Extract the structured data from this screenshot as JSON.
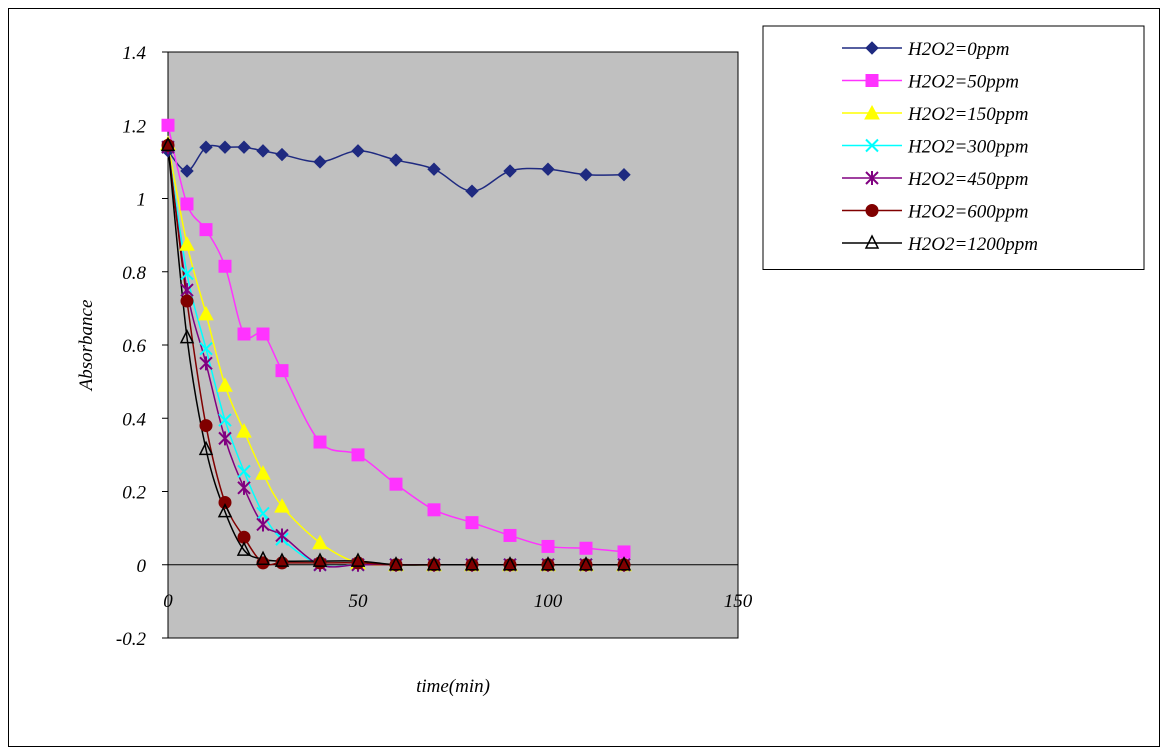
{
  "chart_data": {
    "type": "line",
    "title": "",
    "xlabel": "time(min)",
    "ylabel": "Absorbance",
    "xlim": [
      0,
      150
    ],
    "ylim": [
      -0.2,
      1.4
    ],
    "x_ticks": [
      "0",
      "50",
      "100",
      "150"
    ],
    "y_ticks": [
      "-0.2",
      "0",
      "0.2",
      "0.4",
      "0.6",
      "0.8",
      "1",
      "1.2",
      "1.4"
    ],
    "grid": false,
    "plot_background": "#c0c0c0",
    "legend_position": "top-right",
    "series": [
      {
        "name": "H2O2=0ppm",
        "color": "#1f2a80",
        "marker": "diamond",
        "x": [
          0,
          5,
          10,
          15,
          20,
          25,
          30,
          40,
          50,
          60,
          70,
          80,
          90,
          100,
          110,
          120
        ],
        "y": [
          1.13,
          1.075,
          1.14,
          1.14,
          1.14,
          1.13,
          1.12,
          1.1,
          1.13,
          1.105,
          1.08,
          1.02,
          1.075,
          1.08,
          1.065,
          1.065
        ]
      },
      {
        "name": "H2O2=50ppm",
        "color": "#ff33ff",
        "marker": "square",
        "x": [
          0,
          5,
          10,
          15,
          20,
          25,
          30,
          40,
          50,
          60,
          70,
          80,
          90,
          100,
          110,
          120
        ],
        "y": [
          1.2,
          0.985,
          0.915,
          0.815,
          0.63,
          0.63,
          0.53,
          0.335,
          0.3,
          0.22,
          0.15,
          0.115,
          0.08,
          0.05,
          0.045,
          0.035
        ]
      },
      {
        "name": "H2O2=150ppm",
        "color": "#ffff00",
        "marker": "triangle",
        "x": [
          0,
          5,
          10,
          15,
          20,
          25,
          30,
          40,
          50,
          60,
          70,
          80,
          90,
          100,
          110,
          120
        ],
        "y": [
          1.15,
          0.875,
          0.685,
          0.49,
          0.365,
          0.25,
          0.16,
          0.06,
          0.005,
          0,
          0,
          0,
          0,
          0,
          0,
          0
        ]
      },
      {
        "name": "H2O2=300ppm",
        "color": "#00ffff",
        "marker": "x",
        "x": [
          0,
          5,
          10,
          15,
          20,
          25,
          30,
          40,
          50,
          60,
          70,
          80,
          90,
          100,
          110,
          120
        ],
        "y": [
          1.14,
          0.795,
          0.59,
          0.395,
          0.255,
          0.14,
          0.07,
          0,
          0,
          0,
          0,
          0,
          0,
          0,
          0,
          0
        ]
      },
      {
        "name": "H2O2=450ppm",
        "color": "#800080",
        "marker": "asterisk",
        "x": [
          0,
          5,
          10,
          15,
          20,
          25,
          30,
          40,
          50,
          60,
          70,
          80,
          90,
          100,
          110,
          120
        ],
        "y": [
          1.14,
          0.75,
          0.55,
          0.345,
          0.21,
          0.11,
          0.08,
          0,
          0,
          0,
          0,
          0,
          0,
          0,
          0,
          0
        ]
      },
      {
        "name": "H2O2=600ppm",
        "color": "#800000",
        "marker": "circle",
        "x": [
          0,
          5,
          10,
          15,
          20,
          25,
          30,
          40,
          50,
          60,
          70,
          80,
          90,
          100,
          110,
          120
        ],
        "y": [
          1.145,
          0.72,
          0.38,
          0.17,
          0.075,
          0.005,
          0.005,
          0.005,
          0.005,
          0,
          0,
          0,
          0,
          0,
          0,
          0
        ]
      },
      {
        "name": "H2O2=1200ppm",
        "color": "#000000",
        "marker": "open-triangle",
        "x": [
          0,
          5,
          10,
          15,
          20,
          25,
          30,
          40,
          50,
          60,
          70,
          80,
          90,
          100,
          110,
          120
        ],
        "y": [
          1.145,
          0.62,
          0.315,
          0.145,
          0.04,
          0.015,
          0.01,
          0.01,
          0.01,
          0,
          0,
          0,
          0,
          0,
          0,
          0
        ]
      }
    ]
  }
}
